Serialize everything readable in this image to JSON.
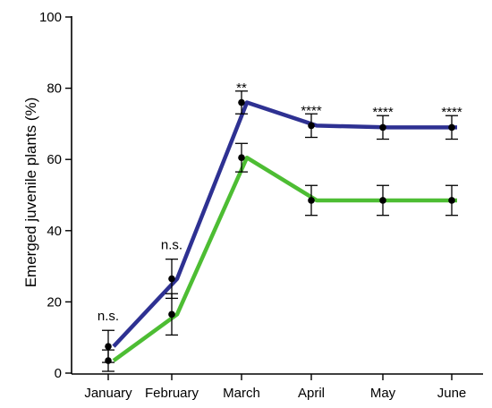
{
  "chart_data": {
    "type": "line",
    "title": "",
    "xlabel": "",
    "ylabel": "Emerged juvenile plants (%)",
    "ylim": [
      0,
      100
    ],
    "yticks": [
      0,
      20,
      40,
      60,
      80,
      100
    ],
    "grid": false,
    "legend": "none",
    "categories": [
      "January",
      "February",
      "March",
      "April",
      "May",
      "June"
    ],
    "series": [
      {
        "color": "#2e3192",
        "values": [
          7.5,
          26.5,
          76,
          69.5,
          69,
          69
        ],
        "error": [
          4.5,
          5.5,
          3.2,
          3.3,
          3.3,
          3.3
        ]
      },
      {
        "color": "#4dbd33",
        "values": [
          3.5,
          16.5,
          60.5,
          48.5,
          48.5,
          48.5
        ],
        "error": [
          3.0,
          5.8,
          4.0,
          4.2,
          4.2,
          4.2
        ]
      }
    ],
    "annotations": [
      {
        "category": "January",
        "text": "n.s."
      },
      {
        "category": "February",
        "text": "n.s."
      },
      {
        "category": "March",
        "text": "**"
      },
      {
        "category": "April",
        "text": "****"
      },
      {
        "category": "May",
        "text": "****"
      },
      {
        "category": "June",
        "text": "****"
      }
    ]
  }
}
